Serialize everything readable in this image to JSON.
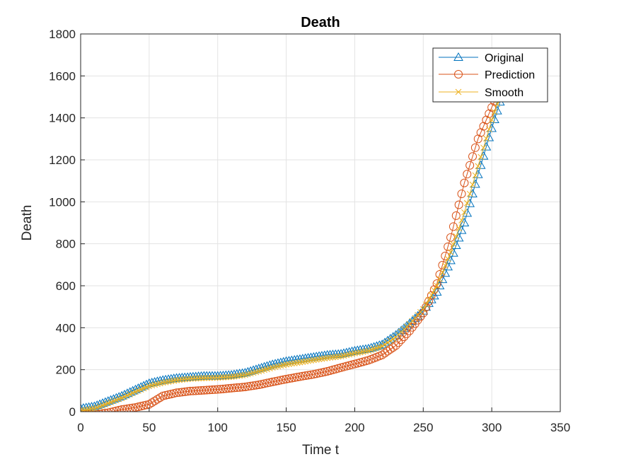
{
  "chart_data": {
    "type": "line",
    "title": "Death",
    "xlabel": "Time t",
    "ylabel": "Death",
    "xlim": [
      0,
      350
    ],
    "ylim": [
      0,
      1800
    ],
    "xticks": [
      "0",
      "50",
      "100",
      "150",
      "200",
      "250",
      "300",
      "350"
    ],
    "yticks": [
      "0",
      "200",
      "400",
      "600",
      "800",
      "1000",
      "1200",
      "1400",
      "1600",
      "1800"
    ],
    "grid": true,
    "legend_position": "top-right",
    "series": [
      {
        "name": "Original",
        "color": "#0072BD",
        "marker": "triangle",
        "x": [
          0,
          10,
          20,
          30,
          40,
          50,
          60,
          70,
          80,
          90,
          100,
          110,
          120,
          130,
          140,
          150,
          160,
          170,
          180,
          190,
          200,
          210,
          220,
          230,
          240,
          250,
          260,
          270,
          280,
          290,
          300,
          310
        ],
        "y": [
          15,
          25,
          50,
          75,
          105,
          135,
          150,
          160,
          165,
          170,
          170,
          175,
          185,
          205,
          225,
          240,
          250,
          260,
          270,
          275,
          290,
          300,
          320,
          365,
          420,
          480,
          570,
          720,
          900,
          1130,
          1350,
          1560
        ]
      },
      {
        "name": "Prediction",
        "color": "#D95319",
        "marker": "circle",
        "x": [
          0,
          10,
          20,
          30,
          40,
          50,
          60,
          70,
          80,
          90,
          100,
          110,
          120,
          130,
          140,
          150,
          160,
          170,
          180,
          190,
          200,
          210,
          220,
          230,
          240,
          250,
          260,
          270,
          280,
          290,
          300,
          310
        ],
        "y": [
          -10,
          -15,
          -5,
          10,
          20,
          35,
          75,
          90,
          98,
          102,
          106,
          112,
          118,
          128,
          142,
          155,
          167,
          178,
          192,
          210,
          227,
          245,
          270,
          315,
          385,
          470,
          610,
          830,
          1090,
          1300,
          1450,
          1590
        ]
      },
      {
        "name": "Smooth",
        "color": "#EDB120",
        "marker": "x",
        "x": [
          0,
          10,
          20,
          30,
          40,
          50,
          60,
          70,
          80,
          90,
          100,
          110,
          120,
          130,
          140,
          150,
          160,
          170,
          180,
          190,
          200,
          210,
          220,
          230,
          240,
          250,
          260,
          270,
          280,
          290,
          300,
          310
        ],
        "y": [
          5,
          15,
          40,
          65,
          95,
          122,
          138,
          150,
          157,
          160,
          162,
          166,
          175,
          192,
          210,
          225,
          235,
          246,
          256,
          264,
          278,
          290,
          312,
          355,
          418,
          488,
          600,
          760,
          950,
          1170,
          1390,
          1580
        ]
      }
    ]
  }
}
